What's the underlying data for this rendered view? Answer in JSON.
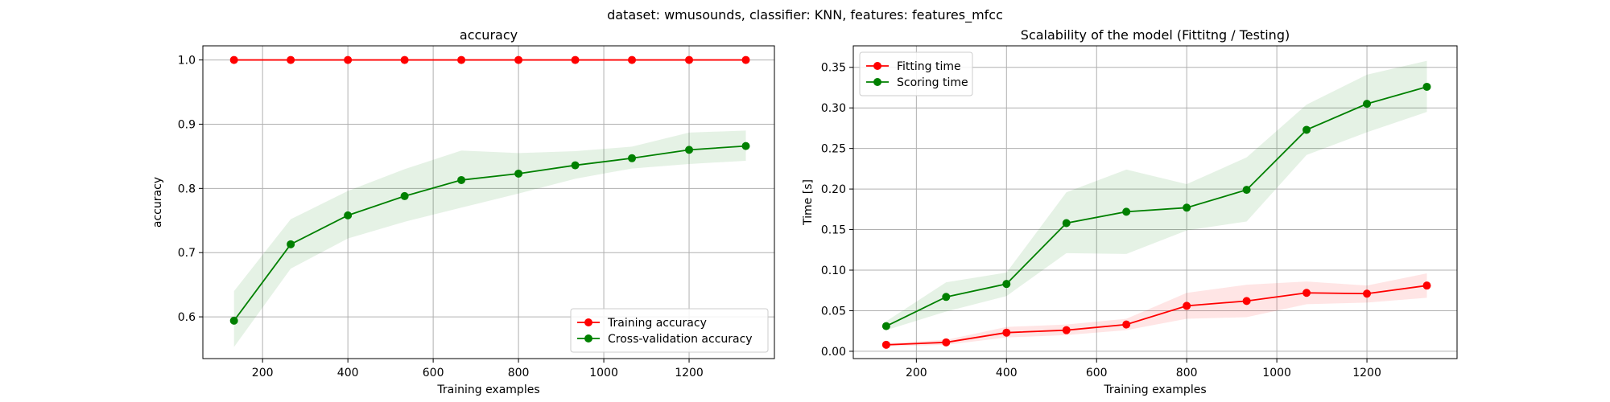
{
  "figure": {
    "suptitle": "dataset: wmusounds, classifier: KNN, features: features_mfcc"
  },
  "chart_data": [
    {
      "type": "line",
      "title": "accuracy",
      "xlabel": "Training examples",
      "ylabel": "accuracy",
      "xlim": [
        60,
        1400
      ],
      "ylim": [
        0.535,
        1.022
      ],
      "xticks": [
        200,
        400,
        600,
        800,
        1000,
        1200
      ],
      "xtick_labels": [
        "200",
        "400",
        "600",
        "800",
        "1000",
        "1200"
      ],
      "yticks": [
        0.6,
        0.7,
        0.8,
        0.9,
        1.0
      ],
      "ytick_labels": [
        "0.6",
        "0.7",
        "0.8",
        "0.9",
        "1.0"
      ],
      "grid": true,
      "legend": "lower-right",
      "x": [
        133,
        266,
        400,
        533,
        666,
        800,
        933,
        1066,
        1200,
        1333
      ],
      "series": [
        {
          "name": "Training accuracy",
          "color": "#ff0000",
          "values": [
            1.0,
            1.0,
            1.0,
            1.0,
            1.0,
            1.0,
            1.0,
            1.0,
            1.0,
            1.0
          ],
          "band_low": [
            1.0,
            1.0,
            1.0,
            1.0,
            1.0,
            1.0,
            1.0,
            1.0,
            1.0,
            1.0
          ],
          "band_high": [
            1.0,
            1.0,
            1.0,
            1.0,
            1.0,
            1.0,
            1.0,
            1.0,
            1.0,
            1.0
          ]
        },
        {
          "name": "Cross-validation accuracy",
          "color": "#008000",
          "values": [
            0.594,
            0.713,
            0.758,
            0.788,
            0.813,
            0.823,
            0.836,
            0.847,
            0.86,
            0.866
          ],
          "band_low": [
            0.553,
            0.675,
            0.722,
            0.748,
            0.77,
            0.792,
            0.815,
            0.831,
            0.838,
            0.843
          ],
          "band_high": [
            0.64,
            0.752,
            0.796,
            0.83,
            0.859,
            0.855,
            0.858,
            0.865,
            0.887,
            0.89
          ]
        }
      ]
    },
    {
      "type": "line",
      "title": "Scalability of the model (Fittitng / Testing)",
      "xlabel": "Training examples",
      "ylabel": "Time [s]",
      "xlim": [
        60,
        1400
      ],
      "ylim": [
        -0.009,
        0.3765
      ],
      "xticks": [
        200,
        400,
        600,
        800,
        1000,
        1200
      ],
      "xtick_labels": [
        "200",
        "400",
        "600",
        "800",
        "1000",
        "1200"
      ],
      "yticks": [
        0.0,
        0.05,
        0.1,
        0.15,
        0.2,
        0.25,
        0.3,
        0.35
      ],
      "ytick_labels": [
        "0.00",
        "0.05",
        "0.10",
        "0.15",
        "0.20",
        "0.25",
        "0.30",
        "0.35"
      ],
      "grid": true,
      "legend": "upper-left",
      "x": [
        133,
        266,
        400,
        533,
        666,
        800,
        933,
        1066,
        1200,
        1333
      ],
      "series": [
        {
          "name": "Fitting time",
          "color": "#ff0000",
          "values": [
            0.008,
            0.011,
            0.023,
            0.026,
            0.033,
            0.056,
            0.062,
            0.072,
            0.071,
            0.081
          ],
          "band_low": [
            0.006,
            0.008,
            0.017,
            0.02,
            0.026,
            0.04,
            0.042,
            0.058,
            0.06,
            0.066
          ],
          "band_high": [
            0.01,
            0.014,
            0.03,
            0.033,
            0.04,
            0.072,
            0.082,
            0.086,
            0.081,
            0.096
          ]
        },
        {
          "name": "Scoring time",
          "color": "#008000",
          "values": [
            0.031,
            0.067,
            0.083,
            0.158,
            0.172,
            0.177,
            0.199,
            0.273,
            0.305,
            0.326
          ],
          "band_low": [
            0.026,
            0.049,
            0.068,
            0.121,
            0.12,
            0.149,
            0.16,
            0.242,
            0.27,
            0.295
          ],
          "band_high": [
            0.037,
            0.085,
            0.097,
            0.196,
            0.224,
            0.206,
            0.239,
            0.304,
            0.341,
            0.358
          ]
        }
      ]
    }
  ]
}
